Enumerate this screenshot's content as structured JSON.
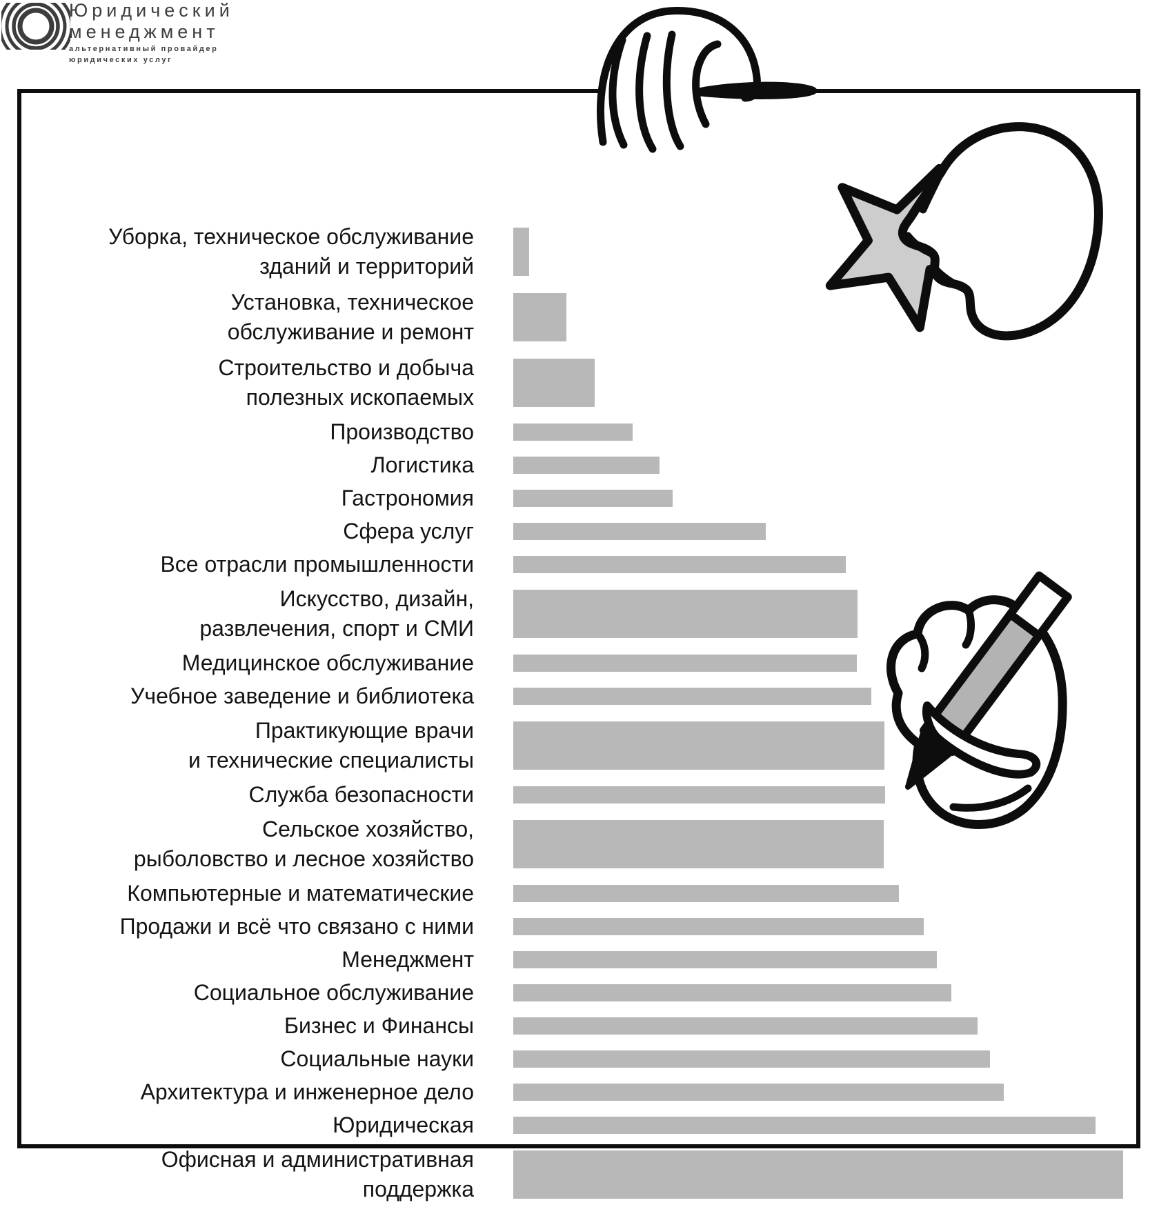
{
  "logo": {
    "title_line1": "Юридический",
    "title_line2": "менеджмент",
    "subtitle_line1": "альтернативный провайдер",
    "subtitle_line2": "юридических услуг"
  },
  "colors": {
    "bar": "#b8b8b8",
    "frame": "#0d0d0d",
    "text": "#141414",
    "logo_text": "#3d3d3d",
    "star_fill": "#cdcdcd",
    "pencil_fill": "#b3b3b3",
    "ink": "#0d0d0d"
  },
  "illustrations": [
    "hand-over-frame",
    "hand-holding-star",
    "hand-writing-with-pencil"
  ],
  "chart_data": {
    "type": "bar",
    "orientation": "horizontal",
    "title": "",
    "xlabel": "",
    "ylabel": "",
    "axis_ticks_visible": false,
    "grid": false,
    "legend": false,
    "bar_color": "#b8b8b8",
    "values_unit": "percent of longest bar (no numeric axis shown in image)",
    "categories": [
      [
        "Уборка, техническое обслуживание",
        "зданий и территорий"
      ],
      [
        "Установка, техническое",
        "обслуживание и ремонт"
      ],
      [
        "Строительство и добыча",
        "полезных ископаемых"
      ],
      [
        "Производство"
      ],
      [
        "Логистика"
      ],
      [
        "Гастрономия"
      ],
      [
        "Сфера услуг"
      ],
      [
        "Все отрасли промышленности"
      ],
      [
        "Искусство, дизайн,",
        "развлечения, спорт и СМИ"
      ],
      [
        "Медицинское обслуживание"
      ],
      [
        "Учебное заведение и библиотека"
      ],
      [
        "Практикующие врачи",
        "и технические специалисты"
      ],
      [
        "Служба безопасности"
      ],
      [
        "Сельское хозяйство,",
        "рыболовство и лесное хозяйство"
      ],
      [
        "Компьютерные и математические"
      ],
      [
        "Продажи и всё что связано с ними"
      ],
      [
        "Менеджмент"
      ],
      [
        "Социальное обслуживание"
      ],
      [
        "Бизнес и Финансы"
      ],
      [
        "Социальные науки"
      ],
      [
        "Архитектура и инженерное дело"
      ],
      [
        "Юридическая"
      ],
      [
        "Офисная и административная",
        "поддержка"
      ]
    ],
    "values": [
      2.6,
      8.7,
      13.3,
      19.6,
      24.0,
      26.1,
      41.4,
      54.5,
      56.4,
      56.3,
      58.7,
      60.9,
      61.0,
      60.7,
      63.2,
      67.3,
      69.5,
      71.8,
      76.1,
      78.2,
      80.4,
      95.5,
      100.0
    ]
  }
}
